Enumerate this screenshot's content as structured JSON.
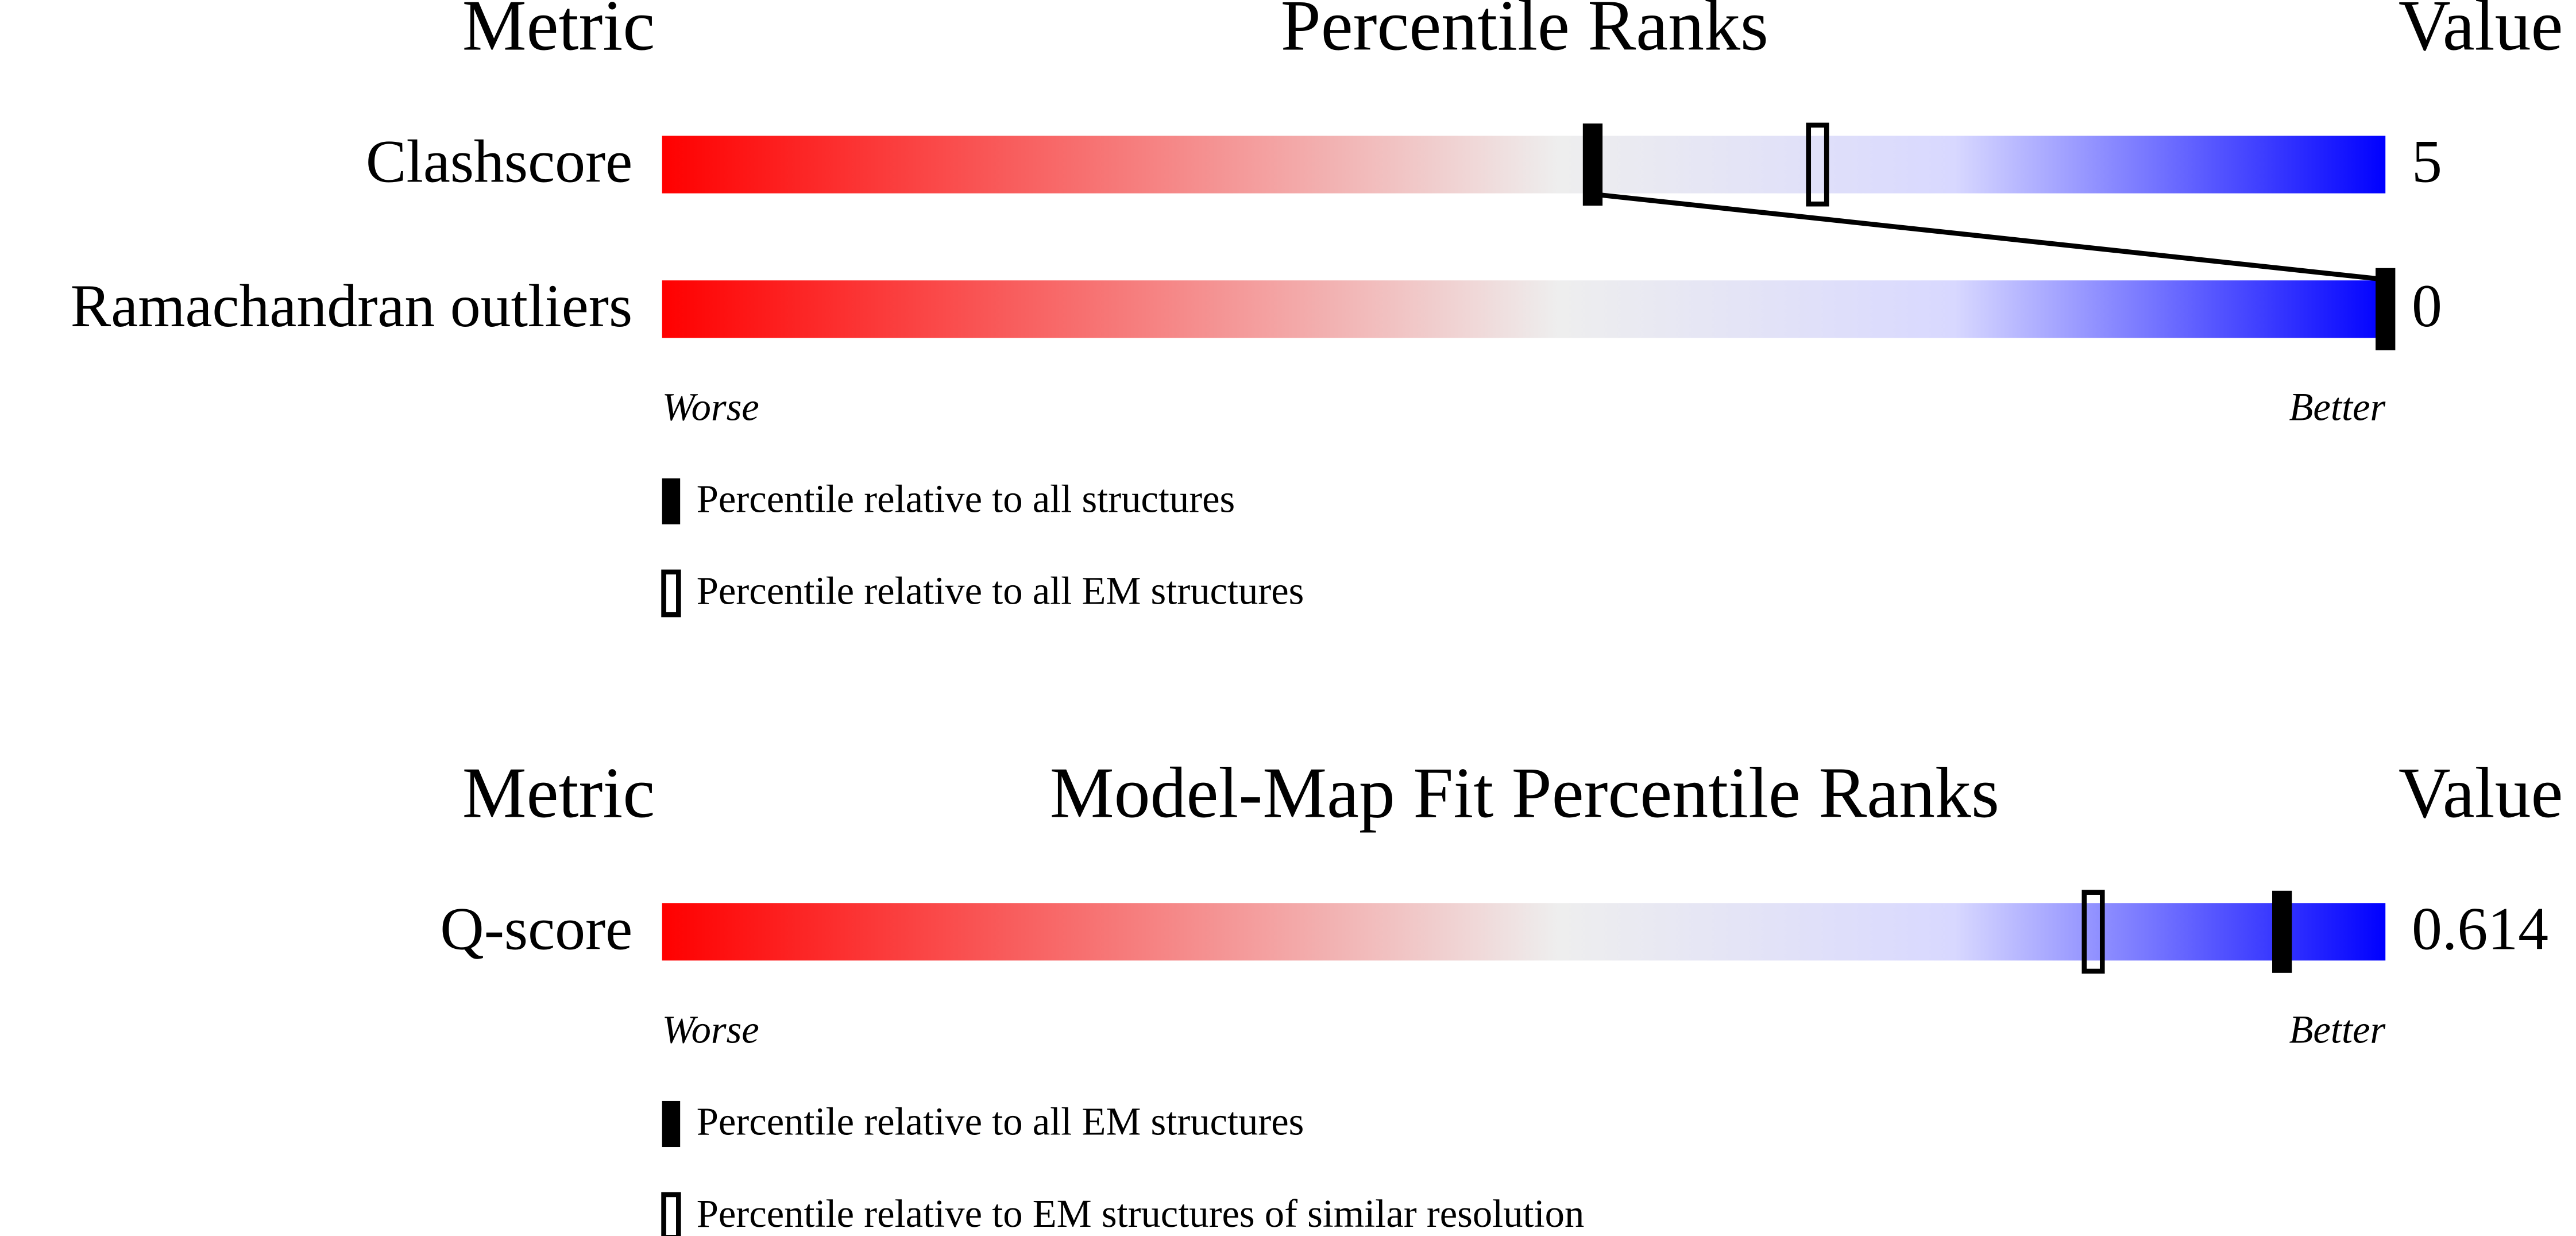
{
  "chart_data": [
    {
      "type": "percentile-slider",
      "headers": {
        "metric": "Metric",
        "title": "Percentile Ranks",
        "value": "Value"
      },
      "categories": [
        "Clashscore",
        "Ramachandran outliers"
      ],
      "metric_values": [
        5,
        0
      ],
      "xlim": [
        0,
        100
      ],
      "x_labels": {
        "low": "Worse",
        "high": "Better"
      },
      "gradient": [
        "#ff0000",
        "#eeeeee",
        "#d8d8ff",
        "#0000ff"
      ],
      "series": [
        {
          "name": "Percentile relative to all structures",
          "style": "filled",
          "color": "#000000",
          "values": [
            54,
            100
          ]
        },
        {
          "name": "Percentile relative to all EM structures",
          "style": "open",
          "color": "#000000",
          "values": [
            67,
            null
          ]
        }
      ]
    },
    {
      "type": "percentile-slider",
      "headers": {
        "metric": "Metric",
        "title": "Model-Map Fit Percentile Ranks",
        "value": "Value"
      },
      "categories": [
        "Q-score"
      ],
      "metric_values": [
        0.614
      ],
      "xlim": [
        0,
        100
      ],
      "x_labels": {
        "low": "Worse",
        "high": "Better"
      },
      "gradient": [
        "#ff0000",
        "#eeeeee",
        "#d8d8ff",
        "#0000ff"
      ],
      "series": [
        {
          "name": "Percentile relative to all EM structures",
          "style": "filled",
          "color": "#000000",
          "values": [
            94
          ]
        },
        {
          "name": "Percentile relative to EM structures of similar resolution",
          "style": "open",
          "color": "#000000",
          "values": [
            83
          ]
        }
      ]
    }
  ]
}
